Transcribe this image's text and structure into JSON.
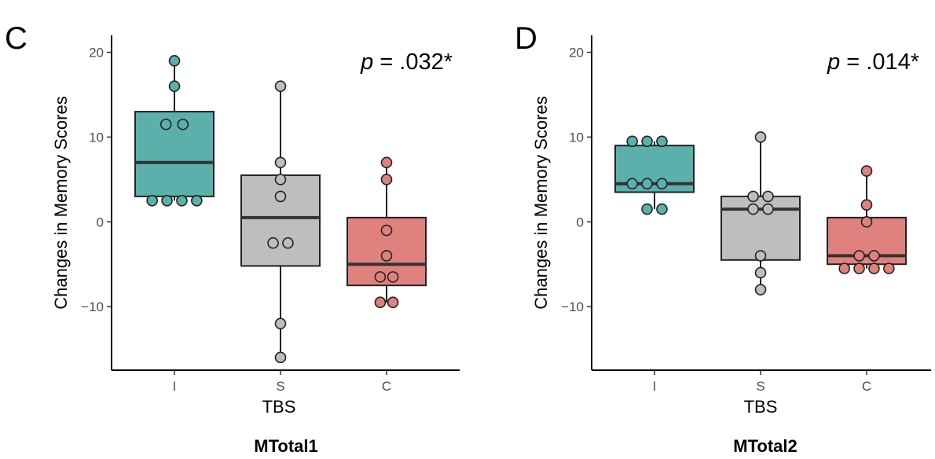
{
  "chart_data": [
    {
      "type": "box",
      "panel_label": "C",
      "caption": "MTotal1",
      "p_text": {
        "prefix": "p",
        "value": " = .032*"
      },
      "xlabel": "TBS",
      "ylabel": "Changes in Memory Scores",
      "ylim": [
        -17.5,
        22
      ],
      "yticks": [
        -10,
        0,
        10,
        20
      ],
      "categories": [
        "I",
        "S",
        "C"
      ],
      "series": [
        {
          "name": "I",
          "color": "#5BB0AC",
          "q1": 3,
          "median": 7,
          "q3": 13,
          "min": 2.5,
          "max": 19,
          "points": [
            {
              "x": 1,
              "y": 19
            },
            {
              "x": 1,
              "y": 16
            },
            {
              "x": 0.92,
              "y": 11.5
            },
            {
              "x": 1.08,
              "y": 11.5
            },
            {
              "x": 0.79,
              "y": 2.5
            },
            {
              "x": 0.93,
              "y": 2.5
            },
            {
              "x": 1.07,
              "y": 2.5
            },
            {
              "x": 1.21,
              "y": 2.5
            }
          ]
        },
        {
          "name": "S",
          "color": "#BEBEBE",
          "q1": -5.2,
          "median": 0.5,
          "q3": 5.5,
          "min": -16,
          "max": 16,
          "points": [
            {
              "x": 2,
              "y": 16
            },
            {
              "x": 2,
              "y": 7
            },
            {
              "x": 2,
              "y": 5
            },
            {
              "x": 2,
              "y": 3
            },
            {
              "x": 1.93,
              "y": -2.5
            },
            {
              "x": 2.07,
              "y": -2.5
            },
            {
              "x": 2,
              "y": -12
            },
            {
              "x": 2,
              "y": -16
            }
          ]
        },
        {
          "name": "C",
          "color": "#E0817E",
          "q1": -7.5,
          "median": -5,
          "q3": 0.5,
          "min": -9.5,
          "max": 7,
          "points": [
            {
              "x": 3,
              "y": 7
            },
            {
              "x": 3,
              "y": 5
            },
            {
              "x": 3,
              "y": -1
            },
            {
              "x": 3,
              "y": -4
            },
            {
              "x": 2.94,
              "y": -6.5
            },
            {
              "x": 3.06,
              "y": -6.5
            },
            {
              "x": 2.94,
              "y": -9.5
            },
            {
              "x": 3.06,
              "y": -9.5
            }
          ]
        }
      ]
    },
    {
      "type": "box",
      "panel_label": "D",
      "caption": "MTotal2",
      "p_text": {
        "prefix": "p",
        "value": " = .014*"
      },
      "xlabel": "TBS",
      "ylabel": "Changes in Memory Scores",
      "ylim": [
        -17.5,
        22
      ],
      "yticks": [
        -10,
        0,
        10,
        20
      ],
      "categories": [
        "I",
        "S",
        "C"
      ],
      "series": [
        {
          "name": "I",
          "color": "#5BB0AC",
          "q1": 3.5,
          "median": 4.5,
          "q3": 9,
          "min": 1.5,
          "max": 9.5,
          "points": [
            {
              "x": 0.79,
              "y": 9.5
            },
            {
              "x": 0.93,
              "y": 9.5
            },
            {
              "x": 1.07,
              "y": 9.5
            },
            {
              "x": 0.79,
              "y": 4.5
            },
            {
              "x": 0.93,
              "y": 4.5
            },
            {
              "x": 1.07,
              "y": 4.5
            },
            {
              "x": 0.93,
              "y": 1.5
            },
            {
              "x": 1.07,
              "y": 1.5
            }
          ]
        },
        {
          "name": "S",
          "color": "#BEBEBE",
          "q1": -4.5,
          "median": 1.5,
          "q3": 3,
          "min": -8,
          "max": 10,
          "points": [
            {
              "x": 2,
              "y": 10
            },
            {
              "x": 1.93,
              "y": 3
            },
            {
              "x": 2.07,
              "y": 3
            },
            {
              "x": 1.93,
              "y": 1.5
            },
            {
              "x": 2.07,
              "y": 1.5
            },
            {
              "x": 2,
              "y": -4
            },
            {
              "x": 2,
              "y": -6
            },
            {
              "x": 2,
              "y": -8
            }
          ]
        },
        {
          "name": "C",
          "color": "#E0817E",
          "q1": -5,
          "median": -4,
          "q3": 0.5,
          "min": -5.5,
          "max": 6,
          "points": [
            {
              "x": 3,
              "y": 6
            },
            {
              "x": 3,
              "y": 2
            },
            {
              "x": 3,
              "y": 0
            },
            {
              "x": 2.93,
              "y": -4
            },
            {
              "x": 3.07,
              "y": -4
            },
            {
              "x": 2.79,
              "y": -5.5
            },
            {
              "x": 2.93,
              "y": -5.5
            },
            {
              "x": 3.07,
              "y": -5.5
            },
            {
              "x": 3.21,
              "y": -5.5
            }
          ]
        }
      ]
    }
  ]
}
